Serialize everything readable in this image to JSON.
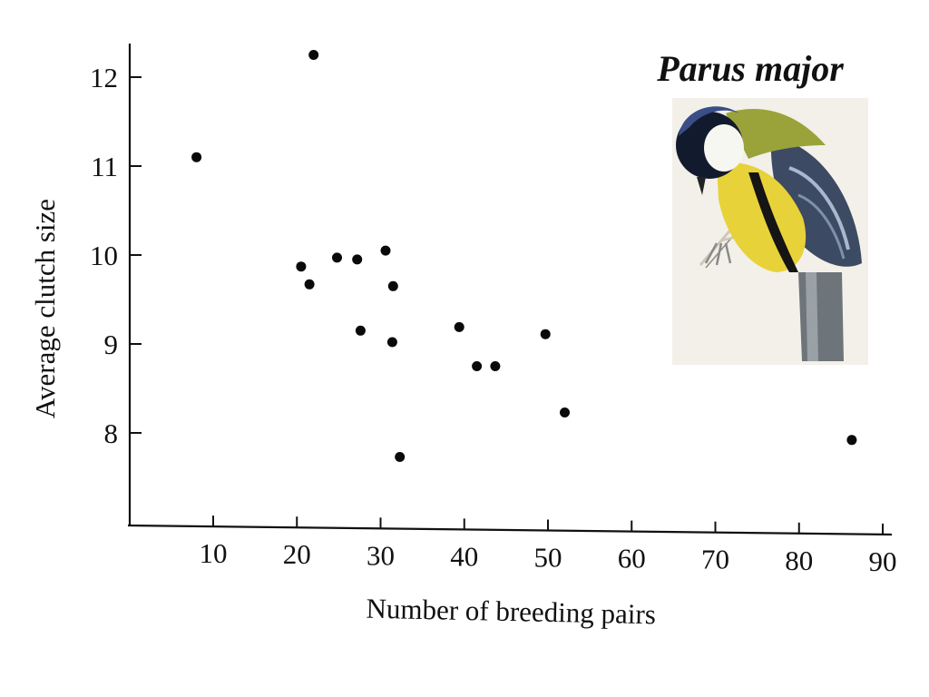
{
  "chart_data": {
    "type": "scatter",
    "title": "",
    "xlabel": "Number of breeding pairs",
    "ylabel": "Average clutch size",
    "xlim": [
      0,
      91
    ],
    "ylim": [
      7,
      12.4
    ],
    "x_ticks": [
      10,
      20,
      30,
      40,
      50,
      60,
      70,
      80,
      90
    ],
    "y_ticks": [
      8,
      9,
      10,
      11,
      12
    ],
    "grid": false,
    "legend": "none",
    "annotation": "Parus major",
    "image": "great-tit-illustration",
    "point_color": "#0a0a0a",
    "series": [
      {
        "points": [
          {
            "x": 8,
            "y": 11.1
          },
          {
            "x": 22,
            "y": 12.25
          },
          {
            "x": 20.5,
            "y": 9.87
          },
          {
            "x": 21.5,
            "y": 9.67
          },
          {
            "x": 24.8,
            "y": 9.97
          },
          {
            "x": 27.2,
            "y": 9.95
          },
          {
            "x": 27.6,
            "y": 9.15
          },
          {
            "x": 30.6,
            "y": 10.05
          },
          {
            "x": 31.5,
            "y": 9.65
          },
          {
            "x": 31.4,
            "y": 9.02
          },
          {
            "x": 32.3,
            "y": 7.73
          },
          {
            "x": 39.4,
            "y": 9.19
          },
          {
            "x": 41.5,
            "y": 8.75
          },
          {
            "x": 43.7,
            "y": 8.75
          },
          {
            "x": 49.7,
            "y": 9.11
          },
          {
            "x": 52,
            "y": 8.23
          },
          {
            "x": 86.3,
            "y": 7.92
          }
        ]
      }
    ]
  }
}
